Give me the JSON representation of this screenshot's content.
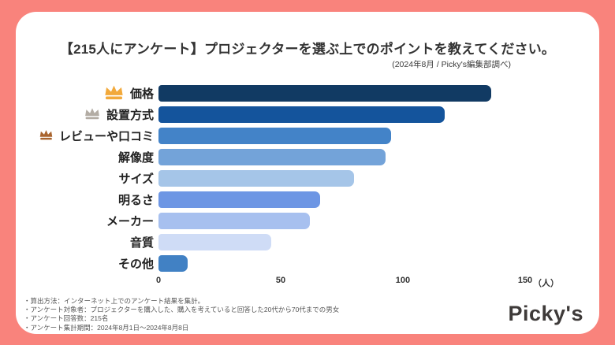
{
  "page": {
    "background_color": "#F9837C",
    "card_color": "#FFFFFF"
  },
  "header": {
    "title": "【215人にアンケート】プロジェクターを選ぶ上でのポイントを教えてください。",
    "subtitle": "(2024年8月 / Picky's編集部調べ)"
  },
  "chart_data": {
    "type": "bar",
    "orientation": "horizontal",
    "title": "【215人にアンケート】プロジェクターを選ぶ上でのポイントを教えてください。",
    "categories": [
      "価格",
      "設置方式",
      "レビューや口コミ",
      "解像度",
      "サイズ",
      "明るさ",
      "メーカー",
      "音質",
      "その他"
    ],
    "values": [
      136,
      117,
      95,
      93,
      80,
      66,
      62,
      46,
      12
    ],
    "bar_colors": [
      "#113A63",
      "#14549C",
      "#4383C8",
      "#73A3D9",
      "#A5C5E8",
      "#6D96E4",
      "#A7C0EF",
      "#CFDCF6",
      "#4181C4"
    ],
    "crowns": [
      "gold",
      "silver",
      "bronze",
      null,
      null,
      null,
      null,
      null,
      null
    ],
    "crown_colors": {
      "gold": "#F2A93B",
      "silver": "#B3ACA4",
      "bronze": "#A9652F"
    },
    "crown_sizes": {
      "gold": 27,
      "silver": 22,
      "bronze": 19
    },
    "xticks": [
      0,
      50,
      100,
      150
    ],
    "xlim": [
      0,
      150
    ],
    "unit_label": "（人）",
    "grid": false,
    "legend": false
  },
  "footer": {
    "notes": [
      "・算出方法：インターネット上でのアンケート結果を集計。",
      "・アンケート対象者：プロジェクターを購入した、購入を考えていると回答した20代から70代までの男女",
      "・アンケート回答数：215名",
      "・アンケート集計期間：2024年8月1日〜2024年8月8日"
    ],
    "logo_text": "Picky's"
  }
}
